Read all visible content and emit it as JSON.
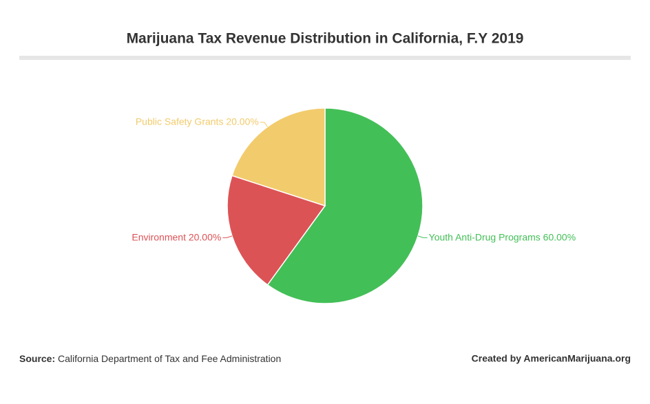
{
  "chart_data": {
    "type": "pie",
    "title": "Marijuana Tax Revenue Distribution in California, F.Y 2019",
    "categories": [
      "Youth Anti-Drug Programs",
      "Environment",
      "Public Safety Grants"
    ],
    "values": [
      60,
      20,
      20
    ],
    "value_labels": [
      "60.00%",
      "20.00%",
      "20.00%"
    ],
    "colors": [
      "#43bf57",
      "#dc5356",
      "#f2cb6c"
    ]
  },
  "footer": {
    "source_label": "Source:",
    "source": "California Department of Tax and Fee Administration",
    "credit": "Created by AmericanMarijuana.org"
  }
}
